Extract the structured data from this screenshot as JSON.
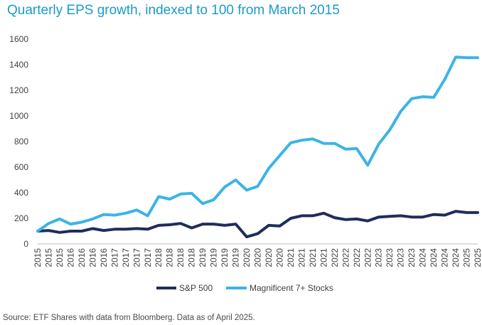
{
  "chart_data": {
    "type": "line",
    "title": "Quarterly EPS growth, indexed to 100 from March 2015",
    "xlabel": "",
    "ylabel": "",
    "ylim": [
      0,
      1600
    ],
    "yticks": [
      0,
      200,
      400,
      600,
      800,
      1000,
      1200,
      1400,
      1600
    ],
    "x": [
      "2015",
      "2015",
      "2015",
      "2016",
      "2016",
      "2016",
      "2016",
      "2017",
      "2017",
      "2017",
      "2017",
      "2018",
      "2018",
      "2018",
      "2018",
      "2019",
      "2019",
      "2019",
      "2019",
      "2020",
      "2020",
      "2020",
      "2020",
      "2021",
      "2021",
      "2021",
      "2021",
      "2022",
      "2022",
      "2022",
      "2022",
      "2023",
      "2023",
      "2023",
      "2023",
      "2024",
      "2024",
      "2024",
      "2024",
      "2025",
      "2025"
    ],
    "series": [
      {
        "name": "S&P 500",
        "color": "#1f2d5c",
        "values": [
          100,
          105,
          90,
          100,
          100,
          120,
          105,
          115,
          115,
          120,
          115,
          145,
          150,
          160,
          125,
          155,
          155,
          145,
          155,
          55,
          80,
          145,
          140,
          200,
          220,
          220,
          240,
          205,
          190,
          195,
          180,
          210,
          215,
          220,
          210,
          210,
          230,
          225,
          255,
          245,
          245
        ]
      },
      {
        "name": "Magnificent 7+ Stocks",
        "color": "#3cb4e5",
        "values": [
          100,
          160,
          195,
          155,
          170,
          195,
          230,
          225,
          240,
          265,
          220,
          370,
          350,
          390,
          395,
          315,
          345,
          445,
          500,
          420,
          450,
          590,
          690,
          790,
          810,
          820,
          785,
          785,
          740,
          745,
          615,
          780,
          890,
          1035,
          1135,
          1150,
          1145,
          1285,
          1460,
          1455,
          1455
        ]
      }
    ],
    "legend": "bottom",
    "grid": false
  },
  "footer": {
    "source": "Source: ETF Shares with data from Bloomberg. Data as of April 2025."
  }
}
